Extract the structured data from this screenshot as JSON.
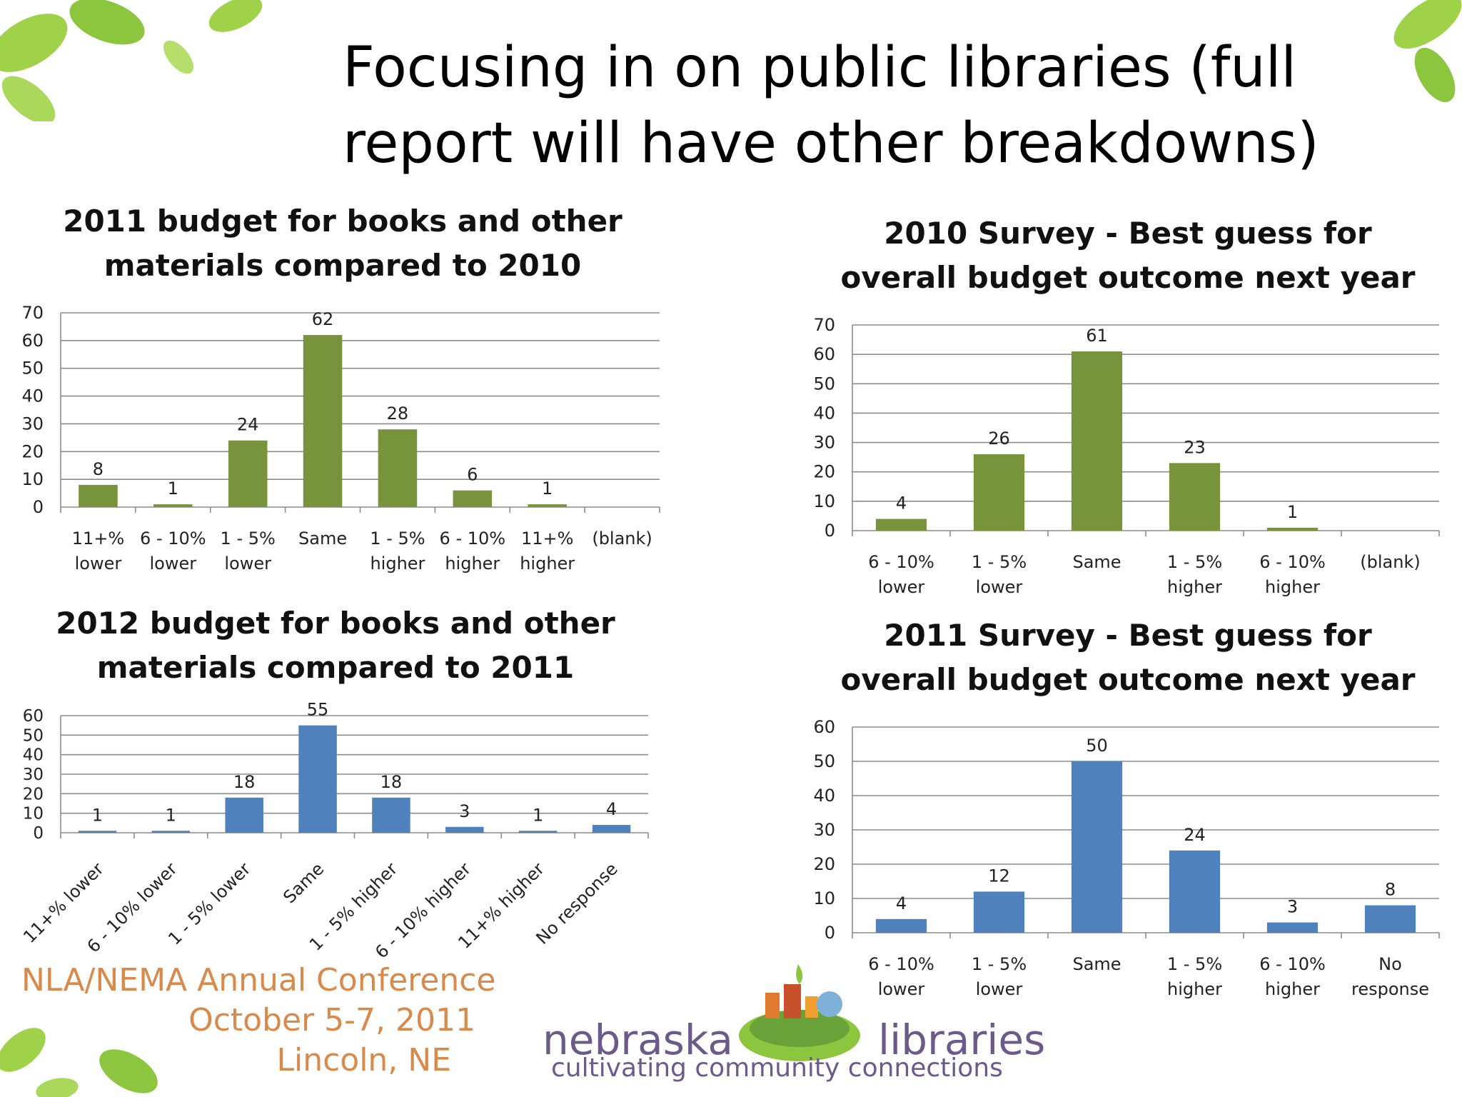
{
  "slide": {
    "title_line1": "Focusing in on public libraries (full",
    "title_line2": "report will have other breakdowns)"
  },
  "footer": {
    "conference_line1": "NLA/NEMA Annual Conference",
    "conference_line2": "October 5-7, 2011",
    "conference_line3": "Lincoln, NE",
    "logo_word1": "nebraska",
    "logo_word2": "libraries",
    "logo_tagline": "cultivating community connections"
  },
  "colors": {
    "green_bar": "#77933c",
    "blue_bar": "#4f81bd",
    "grid": "#8c8c8c",
    "conference_text": "#d98a4a",
    "logo_text": "#6c5a8a",
    "leaf_green": "#8cc63f"
  },
  "chart_data": [
    {
      "id": "chart-2011-materials",
      "type": "bar",
      "title_line1": "2011 budget for books and other",
      "title_line2": "materials compared to 2010",
      "categories": [
        [
          "11+%",
          "lower"
        ],
        [
          "6 - 10%",
          "lower"
        ],
        [
          "1 - 5%",
          "lower"
        ],
        [
          "Same"
        ],
        [
          "1 - 5%",
          "higher"
        ],
        [
          "6 - 10%",
          "higher"
        ],
        [
          "11+%",
          "higher"
        ],
        [
          "(blank)"
        ]
      ],
      "values": [
        8,
        1,
        24,
        62,
        28,
        6,
        1,
        null
      ],
      "ylim": [
        0,
        70
      ],
      "yticks": [
        0,
        10,
        20,
        30,
        40,
        50,
        60,
        70
      ],
      "color": "#77933c",
      "label_style": "wrapped",
      "grid": true
    },
    {
      "id": "chart-2010-survey",
      "type": "bar",
      "title_line1": "2010 Survey - Best guess for",
      "title_line2": "overall budget outcome next year",
      "categories": [
        [
          "6 - 10%",
          "lower"
        ],
        [
          "1 - 5%",
          "lower"
        ],
        [
          "Same"
        ],
        [
          "1 - 5%",
          "higher"
        ],
        [
          "6 - 10%",
          "higher"
        ],
        [
          "(blank)"
        ]
      ],
      "values": [
        4,
        26,
        61,
        23,
        1,
        null
      ],
      "ylim": [
        0,
        70
      ],
      "yticks": [
        0,
        10,
        20,
        30,
        40,
        50,
        60,
        70
      ],
      "color": "#77933c",
      "label_style": "wrapped",
      "grid": true
    },
    {
      "id": "chart-2012-materials",
      "type": "bar",
      "title_line1": "2012 budget for books and other",
      "title_line2": "materials compared to 2011",
      "categories": [
        [
          "11+% lower"
        ],
        [
          "6 - 10% lower"
        ],
        [
          "1 - 5% lower"
        ],
        [
          "Same"
        ],
        [
          "1 - 5% higher"
        ],
        [
          "6 - 10% higher"
        ],
        [
          "11+% higher"
        ],
        [
          "No response"
        ]
      ],
      "values": [
        1,
        1,
        18,
        55,
        18,
        3,
        1,
        4
      ],
      "ylim": [
        0,
        60
      ],
      "yticks": [
        0,
        10,
        20,
        30,
        40,
        50,
        60
      ],
      "color": "#4f81bd",
      "label_style": "rotated",
      "grid": true
    },
    {
      "id": "chart-2011-survey",
      "type": "bar",
      "title_line1": "2011 Survey - Best guess for",
      "title_line2": "overall budget outcome next year",
      "categories": [
        [
          "6 - 10%",
          "lower"
        ],
        [
          "1 - 5%",
          "lower"
        ],
        [
          "Same"
        ],
        [
          "1 - 5%",
          "higher"
        ],
        [
          "6 - 10%",
          "higher"
        ],
        [
          "No",
          "response"
        ]
      ],
      "values": [
        4,
        12,
        50,
        24,
        3,
        8
      ],
      "ylim": [
        0,
        60
      ],
      "yticks": [
        0,
        10,
        20,
        30,
        40,
        50,
        60
      ],
      "color": "#4f81bd",
      "label_style": "wrapped",
      "grid": true
    }
  ]
}
